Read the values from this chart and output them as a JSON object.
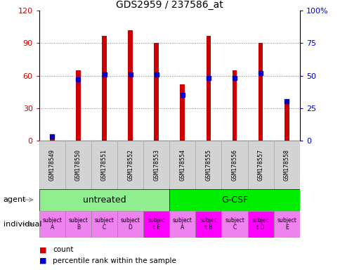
{
  "title": "GDS2959 / 237586_at",
  "samples": [
    "GSM178549",
    "GSM178550",
    "GSM178551",
    "GSM178552",
    "GSM178553",
    "GSM178554",
    "GSM178555",
    "GSM178556",
    "GSM178557",
    "GSM178558"
  ],
  "counts": [
    2,
    65,
    97,
    102,
    90,
    52,
    97,
    65,
    90,
    38
  ],
  "percentile_ranks": [
    3,
    47,
    51,
    51,
    51,
    35,
    48,
    48,
    52,
    30
  ],
  "ylim": [
    0,
    120
  ],
  "y2lim": [
    0,
    100
  ],
  "yticks": [
    0,
    30,
    60,
    90,
    120
  ],
  "y2ticks": [
    0,
    25,
    50,
    75,
    100
  ],
  "bar_color": "#cc0000",
  "percentile_color": "#0000cc",
  "agents": [
    "untreated",
    "G-CSF"
  ],
  "agent_color_untreated": "#90ee90",
  "agent_color_gcsf": "#00ee00",
  "individuals": [
    "subject\nA",
    "subject\nB",
    "subject\nC",
    "subject\nD",
    "subjec\nt E",
    "subject\nA",
    "subjec\nt B",
    "subject\nC",
    "subjec\nt D",
    "subject\nE"
  ],
  "individual_colors": [
    "#ee82ee",
    "#ee82ee",
    "#ee82ee",
    "#ee82ee",
    "#ff00ff",
    "#ee82ee",
    "#ff00ff",
    "#ee82ee",
    "#ff00ff",
    "#ee82ee"
  ],
  "ylabel_left_color": "#cc0000",
  "ylabel_right_color": "#0000cc",
  "tick_area_color": "#d3d3d3"
}
